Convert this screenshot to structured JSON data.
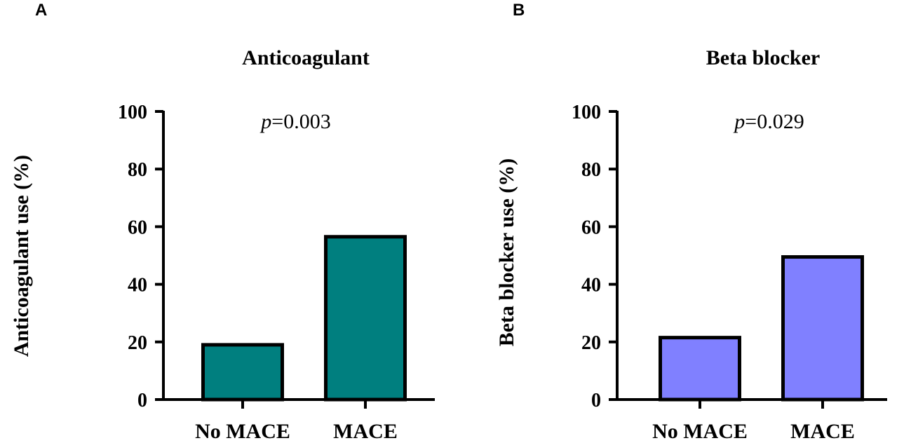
{
  "chart_data": [
    {
      "panel": "A",
      "type": "bar",
      "title": "Anticoagulant",
      "ylabel": "Anticoagulant use (%)",
      "xlabel": "",
      "categories": [
        "No MACE",
        "MACE"
      ],
      "values": [
        19,
        56.5
      ],
      "ylim": [
        0,
        100
      ],
      "yticks": [
        0,
        20,
        40,
        60,
        80,
        100
      ],
      "bar_color": "#007f7f",
      "annotation": {
        "prefix": "p",
        "text": "=0.003"
      }
    },
    {
      "panel": "B",
      "type": "bar",
      "title": "Beta blocker",
      "ylabel": "Beta blocker use (%)",
      "xlabel": "",
      "categories": [
        "No MACE",
        "MACE"
      ],
      "values": [
        21.5,
        49.5
      ],
      "ylim": [
        0,
        100
      ],
      "yticks": [
        0,
        20,
        40,
        60,
        80,
        100
      ],
      "bar_color": "#8080ff",
      "annotation": {
        "prefix": "p",
        "text": "=0.029"
      }
    }
  ]
}
